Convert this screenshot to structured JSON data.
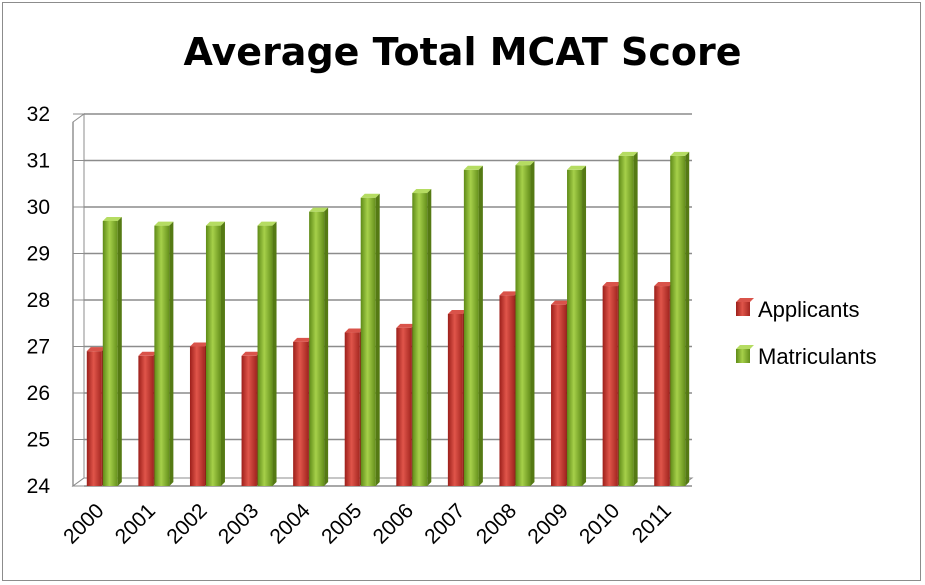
{
  "chart_data": {
    "type": "bar",
    "title": "Average Total MCAT Score",
    "categories": [
      "2000",
      "2001",
      "2002",
      "2003",
      "2004",
      "2005",
      "2006",
      "2007",
      "2008",
      "2009",
      "2010",
      "2011"
    ],
    "series": [
      {
        "name": "Applicants",
        "color": "#c0392b",
        "values": [
          26.9,
          26.8,
          27.0,
          26.8,
          27.1,
          27.3,
          27.4,
          27.7,
          28.1,
          27.9,
          28.3,
          28.3
        ]
      },
      {
        "name": "Matriculants",
        "color": "#7fae2a",
        "values": [
          29.7,
          29.6,
          29.6,
          29.6,
          29.9,
          30.2,
          30.3,
          30.8,
          30.9,
          30.8,
          31.1,
          31.1
        ]
      }
    ],
    "ylim": [
      24,
      32
    ],
    "yticks": [
      24,
      25,
      26,
      27,
      28,
      29,
      30,
      31,
      32
    ],
    "grid": true,
    "legend_position": "right",
    "style": "3d-column"
  }
}
